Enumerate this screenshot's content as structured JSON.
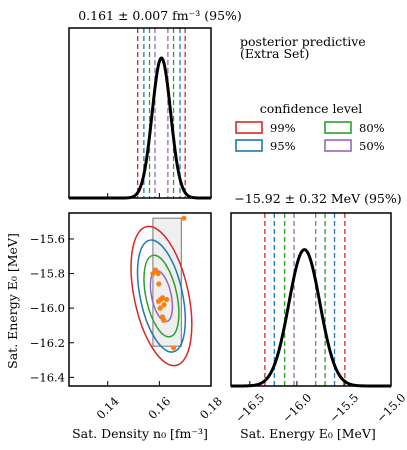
{
  "chart_data": [
    {
      "type": "line",
      "panel": "n0-marginal",
      "title": "0.161 ± 0.007 fm⁻³ (95%)",
      "xlim": [
        0.125,
        0.18
      ],
      "curve": {
        "mean": 0.1608,
        "sd": 0.0036,
        "peak_rel": 1.0
      },
      "intervals": [
        {
          "level": "99%",
          "color": "#d62728",
          "lo": 0.1516,
          "hi": 0.17
        },
        {
          "level": "95%",
          "color": "#1f77b4",
          "lo": 0.154,
          "hi": 0.168
        },
        {
          "level": "80%",
          "color": "#2ca02c",
          "lo": 0.1562,
          "hi": 0.1655
        },
        {
          "level": "50%",
          "color": "#9467bd",
          "lo": 0.1583,
          "hi": 0.1633
        }
      ]
    },
    {
      "type": "scatter",
      "panel": "joint",
      "xlabel": "Sat. Density n₀ [fm⁻³]",
      "ylabel": "Sat. Energy E₀ [MeV]",
      "xlim": [
        0.125,
        0.18
      ],
      "ylim": [
        -16.45,
        -15.45
      ],
      "xticks": [
        0.14,
        0.16,
        0.18
      ],
      "xtick_labels": [
        "0.14",
        "0.16",
        "0.18"
      ],
      "yticks": [
        -16.4,
        -16.2,
        -16.0,
        -15.8,
        -15.6
      ],
      "ytick_labels": [
        "−16.4",
        "−16.2",
        "−16.0",
        "−15.8",
        "−15.6"
      ],
      "ellipse_center": [
        0.1608,
        -15.93
      ],
      "ellipses": [
        {
          "level": "99%",
          "color": "#d62728",
          "rx": 0.0105,
          "ry": 0.41,
          "rot": -12
        },
        {
          "level": "95%",
          "color": "#1f77b4",
          "rx": 0.0082,
          "ry": 0.33,
          "rot": -12
        },
        {
          "level": "80%",
          "color": "#2ca02c",
          "rx": 0.006,
          "ry": 0.24,
          "rot": -12
        },
        {
          "level": "50%",
          "color": "#9467bd",
          "rx": 0.0038,
          "ry": 0.15,
          "rot": -12
        }
      ],
      "box": {
        "x": [
          0.1575,
          0.1685
        ],
        "y": [
          -16.22,
          -15.48
        ]
      },
      "points": [
        {
          "x": 0.1695,
          "y": -15.48
        },
        {
          "x": 0.1585,
          "y": -15.78
        },
        {
          "x": 0.1595,
          "y": -15.8
        },
        {
          "x": 0.1575,
          "y": -15.8
        },
        {
          "x": 0.1598,
          "y": -15.86
        },
        {
          "x": 0.1605,
          "y": -15.95
        },
        {
          "x": 0.1597,
          "y": -15.96
        },
        {
          "x": 0.1612,
          "y": -15.94
        },
        {
          "x": 0.1618,
          "y": -15.98
        },
        {
          "x": 0.1603,
          "y": -16.0
        },
        {
          "x": 0.1612,
          "y": -16.05
        },
        {
          "x": 0.1617,
          "y": -16.07
        },
        {
          "x": 0.1628,
          "y": -15.95
        },
        {
          "x": 0.1655,
          "y": -16.23
        }
      ],
      "point_color": "#ff7f0e"
    },
    {
      "type": "line",
      "panel": "E0-marginal",
      "title": "−15.92 ± 0.32 MeV (95%)",
      "xlabel": "Sat. Energy E₀ [MeV]",
      "xlim": [
        -16.7,
        -15.0
      ],
      "xticks": [
        -16.5,
        -16.0,
        -15.5,
        -15.0
      ],
      "xtick_labels": [
        "−16.5",
        "−16.0",
        "−15.5",
        "−15.0"
      ],
      "curve": {
        "mean": -15.92,
        "sd": 0.165,
        "peak_rel": 0.88
      },
      "intervals": [
        {
          "level": "99%",
          "color": "#d62728",
          "lo": -16.34,
          "hi": -15.49
        },
        {
          "level": "95%",
          "color": "#1f77b4",
          "lo": -16.24,
          "hi": -15.6
        },
        {
          "level": "80%",
          "color": "#2ca02c",
          "lo": -16.13,
          "hi": -15.7
        },
        {
          "level": "50%",
          "color": "#9467bd",
          "lo": -16.03,
          "hi": -15.8
        }
      ]
    }
  ],
  "legend": {
    "header1": "posterior predictive",
    "header2": "(Extra Set)",
    "title": "confidence level",
    "items": [
      {
        "label": "99%",
        "color": "#d62728"
      },
      {
        "label": "80%",
        "color": "#2ca02c"
      },
      {
        "label": "95%",
        "color": "#1f77b4"
      },
      {
        "label": "50%",
        "color": "#9467bd"
      }
    ]
  }
}
